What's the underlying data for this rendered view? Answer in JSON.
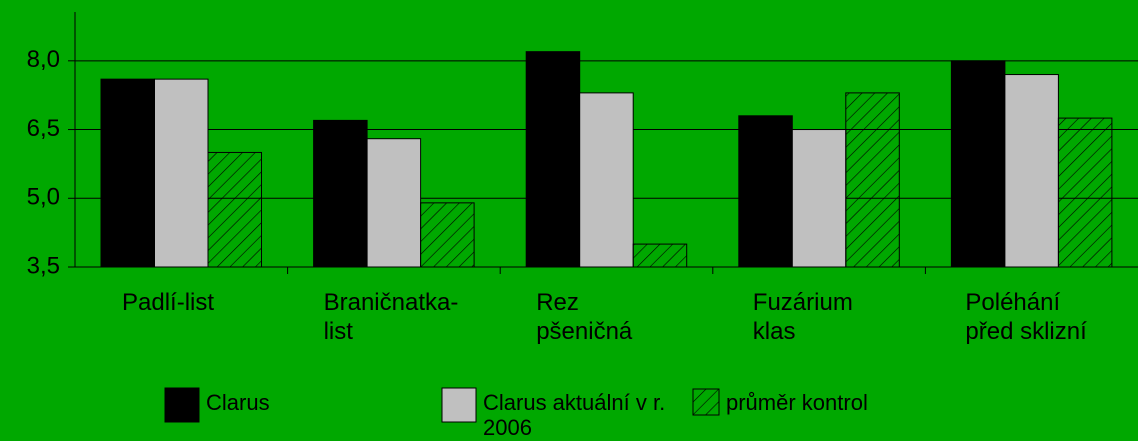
{
  "chart_data": {
    "type": "bar",
    "categories": [
      "Padlí-list",
      "Braničnatka-\nlist",
      "Rez\npšeničná",
      "Fuzárium\nklas",
      "Poléhání\npřed sklizní"
    ],
    "series": [
      {
        "name": "Clarus",
        "color": "#000000",
        "values": [
          7.6,
          6.7,
          8.2,
          6.8,
          8.0
        ]
      },
      {
        "name": "Clarus aktuální v r.\n2006",
        "color": "#c0c0c0",
        "values": [
          7.6,
          6.3,
          7.3,
          6.5,
          7.7
        ]
      },
      {
        "name": "průměr kontrol",
        "color": "hatch",
        "values": [
          6.0,
          4.9,
          4.0,
          7.3,
          6.75
        ]
      }
    ],
    "ylim": [
      3.5,
      9.0
    ],
    "yticks": [
      {
        "value": 3.5,
        "label": "3,5"
      },
      {
        "value": 5.0,
        "label": "5,0"
      },
      {
        "value": 6.5,
        "label": "6,5"
      },
      {
        "value": 8.0,
        "label": "8,0"
      }
    ],
    "grid": true,
    "legend": "bottom",
    "background": "#00a800"
  }
}
